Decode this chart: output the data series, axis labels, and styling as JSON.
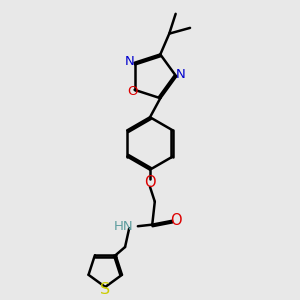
{
  "bg_color": "#e8e8e8",
  "atom_colors": {
    "C": "#000000",
    "N": "#0000cd",
    "O": "#dd0000",
    "S": "#cccc00",
    "H": "#5f9ea0"
  },
  "bond_color": "#000000",
  "bond_width": 1.8,
  "fig_size": [
    3.0,
    3.0
  ],
  "dpi": 100,
  "font_size": 9.5
}
